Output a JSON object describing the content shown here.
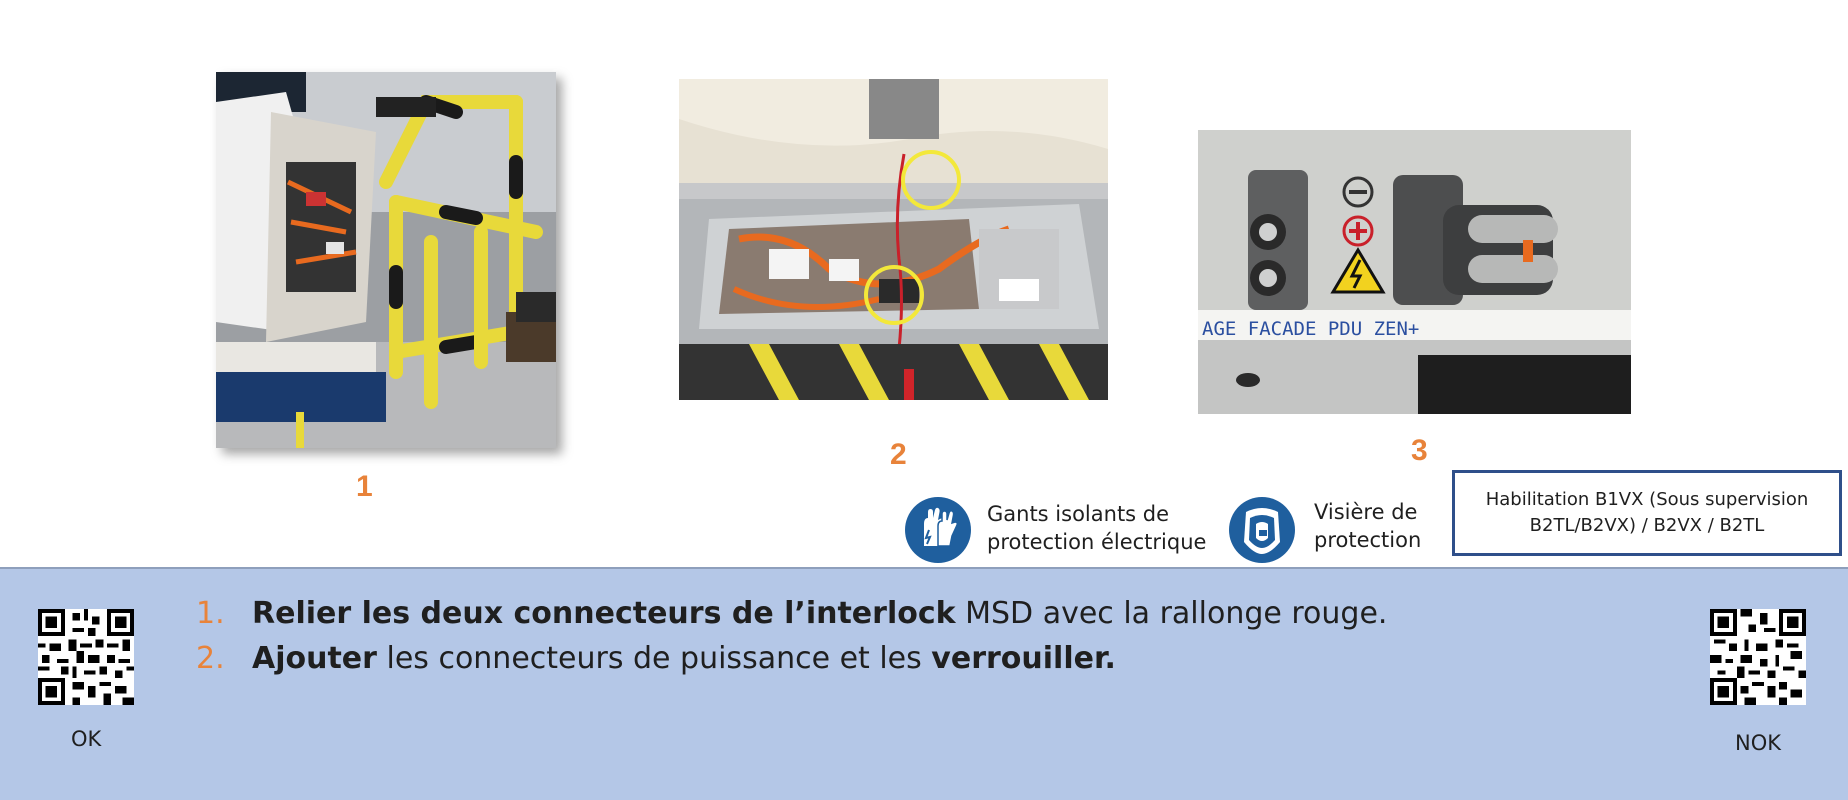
{
  "steps": {
    "photo1_number": "1",
    "photo2_number": "2",
    "photo3_number": "3"
  },
  "photo3_text": "AGE    FACADE  PDU  ZEN+",
  "ppe": {
    "gloves_line1": "Gants isolants de",
    "gloves_line2": "protection électrique",
    "visor_line1": "Visière de",
    "visor_line2": "protection"
  },
  "habilitation": {
    "line1": "Habilitation B1VX (Sous supervision",
    "line2": "B2TL/B2VX) / B2VX / B2TL"
  },
  "instructions": [
    {
      "index": "1.",
      "bold1": "Relier les deux connecteurs de l’interlock",
      "normal1": " MSD avec la rallonge rouge.",
      "bold2": "",
      "normal2": ""
    },
    {
      "index": "2.",
      "bold1": "Ajouter",
      "normal1": " les connecteurs de puissance et les ",
      "bold2": "verrouiller.",
      "normal2": ""
    }
  ],
  "qr": {
    "ok_label": "OK",
    "nok_label": "NOK"
  },
  "colors": {
    "accent_orange": "#e8833a",
    "panel_blue": "#b4c7e7",
    "box_border": "#2f4f8a",
    "ppe_blue": "#1f5f9e"
  }
}
